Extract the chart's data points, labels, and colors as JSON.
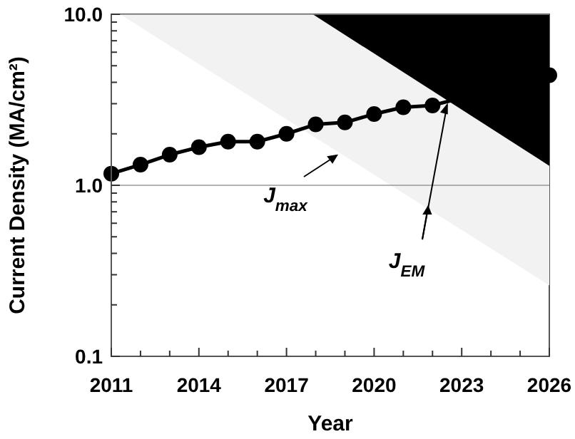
{
  "chart_data": {
    "type": "line",
    "xlabel": "Year",
    "ylabel": "Current Density (MA/cm²)",
    "annotations": [
      "J$_{max}$",
      {
        "text": "J$_{EM}$",
        "x": 2022.5,
        "y": 2.95
      }
    ],
    "series": [
      {
        "type": "area",
        "marker": "none",
        "color": "#f2f2f2",
        "x": [
          2011.3,
          2026
        ],
        "values": [
          10,
          0.26
        ]
      },
      {
        "type": "area",
        "marker": "none",
        "color": "#000000",
        "x": [
          2017.9,
          2026
        ],
        "values": [
          10,
          1.3
        ]
      },
      {
        "color": "#000000",
        "x": [
          2011,
          2012,
          2013,
          2014,
          2015,
          2016,
          2017,
          2018,
          2019,
          2020,
          2021,
          2022,
          2026
        ],
        "values": [
          1.17,
          1.32,
          1.51,
          1.67,
          1.8,
          1.8,
          2.0,
          2.27,
          2.33,
          2.61,
          2.86,
          2.93,
          4.4
        ]
      }
    ],
    "marker": "circle",
    "line_style": "solid",
    "log": "y",
    "grid": "y",
    "xlim": [
      2011,
      2026
    ],
    "ylim": [
      0.1,
      10
    ],
    "xticks": [
      2011,
      {
        "value": 2012,
        "label": null
      },
      {
        "value": 2013,
        "label": null
      },
      2014,
      {
        "value": 2015,
        "label": null
      },
      {
        "value": 2016,
        "label": null
      },
      2017,
      {
        "value": 2018,
        "label": null
      },
      {
        "value": 2019,
        "label": null
      },
      2020,
      {
        "value": 2021,
        "label": null
      },
      {
        "value": 2022,
        "label": null
      },
      2023,
      {
        "value": 2024,
        "label": null
      },
      {
        "value": 2025,
        "label": null
      },
      2026
    ],
    "yticks": [
      0.1,
      {
        "value": 0.2,
        "label": null
      },
      {
        "value": 0.3,
        "label": null
      },
      {
        "value": 0.4,
        "label": null
      },
      {
        "value": 0.5,
        "label": null
      },
      {
        "value": 0.6,
        "label": null
      },
      {
        "value": 0.7,
        "label": null
      },
      {
        "value": 0.8,
        "label": null
      },
      {
        "value": 0.9,
        "label": null
      },
      {
        "value": 1,
        "label": "1.0"
      },
      {
        "value": 2,
        "label": null
      },
      {
        "value": 3,
        "label": null
      },
      {
        "value": 4,
        "label": null
      },
      {
        "value": 5,
        "label": null
      },
      {
        "value": 6,
        "label": null
      },
      {
        "value": 7,
        "label": null
      },
      {
        "value": 8,
        "label": null
      },
      {
        "value": 9,
        "label": null
      },
      {
        "value": 10,
        "label": "10.0"
      }
    ]
  }
}
